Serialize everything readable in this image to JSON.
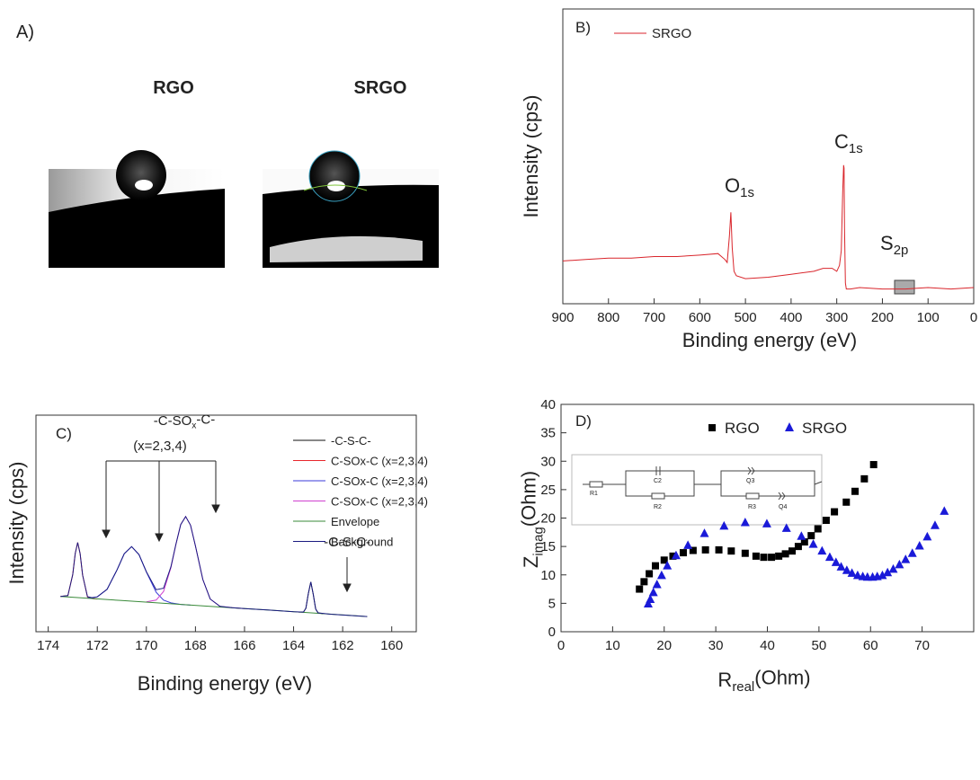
{
  "panel_a": {
    "label": "A)",
    "captions": [
      "RGO",
      "SRGO"
    ]
  },
  "chart_data": [
    {
      "type": "line",
      "label": "B)",
      "xlabel": "Binding energy (eV)",
      "ylabel": "Intensity (cps)",
      "xlim": [
        900,
        0
      ],
      "xticks": [
        900,
        800,
        700,
        600,
        500,
        400,
        300,
        200,
        100,
        0
      ],
      "ylim": [
        0,
        10
      ],
      "series": [
        {
          "name": "SRGO",
          "color": "#d9262c",
          "x": [
            900,
            850,
            800,
            750,
            700,
            650,
            600,
            560,
            545,
            540,
            535,
            532,
            529,
            525,
            520,
            500,
            450,
            400,
            350,
            330,
            310,
            300,
            294,
            290,
            287,
            285,
            284,
            283,
            281,
            279,
            270,
            250,
            200,
            150,
            100,
            50,
            0
          ],
          "values": [
            1.45,
            1.5,
            1.55,
            1.55,
            1.6,
            1.6,
            1.65,
            1.7,
            1.5,
            1.4,
            2.3,
            3.1,
            1.9,
            1.1,
            0.95,
            0.85,
            0.9,
            1.0,
            1.1,
            1.2,
            1.2,
            1.1,
            1.3,
            1.8,
            3.8,
            4.7,
            4.6,
            2.6,
            0.7,
            0.5,
            0.5,
            0.55,
            0.5,
            0.5,
            0.55,
            0.5,
            0.55
          ]
        }
      ],
      "annotations": [
        {
          "parts": [
            "O",
            "1s"
          ]
        },
        {
          "parts": [
            "C",
            "1s"
          ]
        },
        {
          "parts": [
            "S",
            "2p"
          ]
        }
      ]
    },
    {
      "type": "line",
      "label": "C)",
      "xlabel": "Binding energy (eV)",
      "ylabel": "Intensity (cps)",
      "xlim": [
        174.5,
        159
      ],
      "xticks": [
        174,
        172,
        170,
        168,
        166,
        164,
        162,
        160
      ],
      "ylim": [
        0,
        10
      ],
      "series": [
        {
          "name": "-C-S-C-",
          "color": "#111111",
          "x": [
            163.8,
            163.6,
            163.5,
            163.4,
            163.3,
            163.2,
            163.1,
            163.0,
            162.8
          ],
          "values": [
            0.91,
            0.91,
            1.08,
            1.75,
            2.3,
            1.73,
            1.05,
            0.87,
            0.83
          ]
        },
        {
          "name": "C-SOx-C (x=2,3,4)",
          "color": "#e8262c",
          "x": [
            173.5,
            173.2,
            173.0,
            172.9,
            172.8,
            172.7,
            172.6,
            172.4,
            172.2,
            172.0
          ],
          "values": [
            1.63,
            1.67,
            2.64,
            3.62,
            4.12,
            3.61,
            2.61,
            1.61,
            1.53,
            1.51
          ]
        },
        {
          "name": "C-SOx-C (x=2,3,4)",
          "color": "#3a3ad8",
          "x": [
            172.4,
            172.0,
            171.6,
            171.2,
            170.9,
            170.6,
            170.3,
            170.0,
            169.6,
            169.3,
            169.0,
            168.6,
            168.2
          ],
          "values": [
            1.55,
            1.61,
            1.96,
            2.85,
            3.6,
            3.93,
            3.56,
            2.76,
            1.82,
            1.46,
            1.33,
            1.26,
            1.23
          ]
        },
        {
          "name": "C-SOx-C (x=2,3,4)",
          "color": "#d040d0",
          "x": [
            170.0,
            169.6,
            169.3,
            169.0,
            168.8,
            168.6,
            168.4,
            168.2,
            168.0,
            167.7,
            167.4,
            167.0,
            166.5,
            166.0
          ],
          "values": [
            1.38,
            1.46,
            1.86,
            2.96,
            4.02,
            4.95,
            5.32,
            4.92,
            3.96,
            2.41,
            1.51,
            1.17,
            1.11,
            1.07
          ]
        },
        {
          "name": "Envelope",
          "color": "#3a8a3a",
          "x": [
            173.5,
            171,
            169,
            167,
            165,
            163,
            161
          ],
          "values": [
            1.63,
            1.44,
            1.29,
            1.14,
            1.0,
            0.85,
            0.7
          ]
        },
        {
          "name": "Background",
          "color": "#1a1a80",
          "x": [
            173.5,
            173.2,
            173.0,
            172.9,
            172.8,
            172.7,
            172.6,
            172.4,
            172.2,
            172.0,
            171.6,
            171.2,
            170.9,
            170.6,
            170.3,
            170.0,
            169.6,
            169.3,
            169.0,
            168.8,
            168.6,
            168.4,
            168.2,
            168.0,
            167.7,
            167.4,
            167.0,
            166.5,
            166.0,
            165.0,
            164.0,
            163.6,
            163.5,
            163.4,
            163.3,
            163.2,
            163.1,
            163.0,
            162.5,
            162.0,
            161.0
          ],
          "values": [
            1.63,
            1.67,
            2.64,
            3.62,
            4.12,
            3.61,
            2.61,
            1.62,
            1.57,
            1.61,
            1.96,
            2.85,
            3.6,
            3.93,
            3.56,
            2.77,
            1.94,
            2.01,
            3.0,
            4.03,
            4.95,
            5.32,
            4.92,
            3.96,
            2.41,
            1.51,
            1.17,
            1.11,
            1.07,
            1.0,
            0.92,
            0.91,
            1.08,
            1.75,
            2.3,
            1.73,
            1.05,
            0.87,
            0.81,
            0.77,
            0.7
          ]
        }
      ],
      "annotations": [
        {
          "parts": [
            "-C-SO",
            "x",
            "-C-"
          ]
        },
        {
          "parts": [
            "(x=2,3,4)"
          ]
        },
        {
          "parts": [
            "-C-S-C-"
          ]
        }
      ]
    },
    {
      "type": "scatter",
      "label": "D)",
      "xlabel": {
        "parts": [
          "R",
          "real",
          "(Ohm)"
        ]
      },
      "ylabel": {
        "parts": [
          "Z",
          "imag",
          "(Ohm)"
        ]
      },
      "xlim": [
        0,
        80
      ],
      "xticks": [
        0,
        10,
        20,
        30,
        40,
        50,
        60,
        70
      ],
      "ylim": [
        0,
        40
      ],
      "yticks": [
        0,
        5,
        10,
        15,
        20,
        25,
        30,
        35,
        40
      ],
      "series": [
        {
          "name": "RGO",
          "color": "#000000",
          "marker": "square",
          "x": [
            15.2,
            16.1,
            17.1,
            18.3,
            20,
            21.7,
            23.7,
            25.6,
            28,
            30.6,
            33,
            35.7,
            37.8,
            39.3,
            40.8,
            42.2,
            43.5,
            44.8,
            46,
            47.2,
            48.5,
            49.8,
            51.4,
            53,
            55.3,
            57,
            58.8,
            60.6
          ],
          "values": [
            7.5,
            8.8,
            10.2,
            11.6,
            12.6,
            13.3,
            13.9,
            14.3,
            14.4,
            14.4,
            14.2,
            13.8,
            13.3,
            13.1,
            13.1,
            13.3,
            13.7,
            14.2,
            15,
            15.8,
            16.9,
            18.1,
            19.6,
            21.1,
            22.8,
            24.7,
            26.9,
            29.4
          ]
        },
        {
          "name": "SRGO",
          "color": "#1a1ad8",
          "marker": "triangle",
          "x": [
            16.9,
            17.3,
            17.9,
            18.6,
            19.5,
            20.6,
            22.3,
            24.6,
            27.8,
            31.6,
            35.7,
            39.9,
            43.7,
            46.6,
            48.9,
            50.6,
            52.1,
            53.3,
            54.3,
            55.4,
            56.4,
            57.5,
            58.5,
            59.4,
            60.4,
            61.3,
            62.3,
            63.3,
            64.4,
            65.6,
            66.8,
            68.1,
            69.5,
            71,
            72.5,
            74.3
          ],
          "values": [
            4.9,
            5.7,
            6.9,
            8.3,
            9.9,
            11.6,
            13.4,
            15.2,
            17.3,
            18.6,
            19.2,
            19,
            18.2,
            16.8,
            15.4,
            14.2,
            13.1,
            12.2,
            11.4,
            10.8,
            10.3,
            9.9,
            9.7,
            9.6,
            9.6,
            9.7,
            9.9,
            10.4,
            11,
            11.8,
            12.7,
            13.8,
            15.1,
            16.7,
            18.7,
            21.2
          ]
        }
      ],
      "circuit_labels": [
        "R1",
        "C2",
        "R2",
        "Q3",
        "R3",
        "Q4"
      ]
    }
  ]
}
